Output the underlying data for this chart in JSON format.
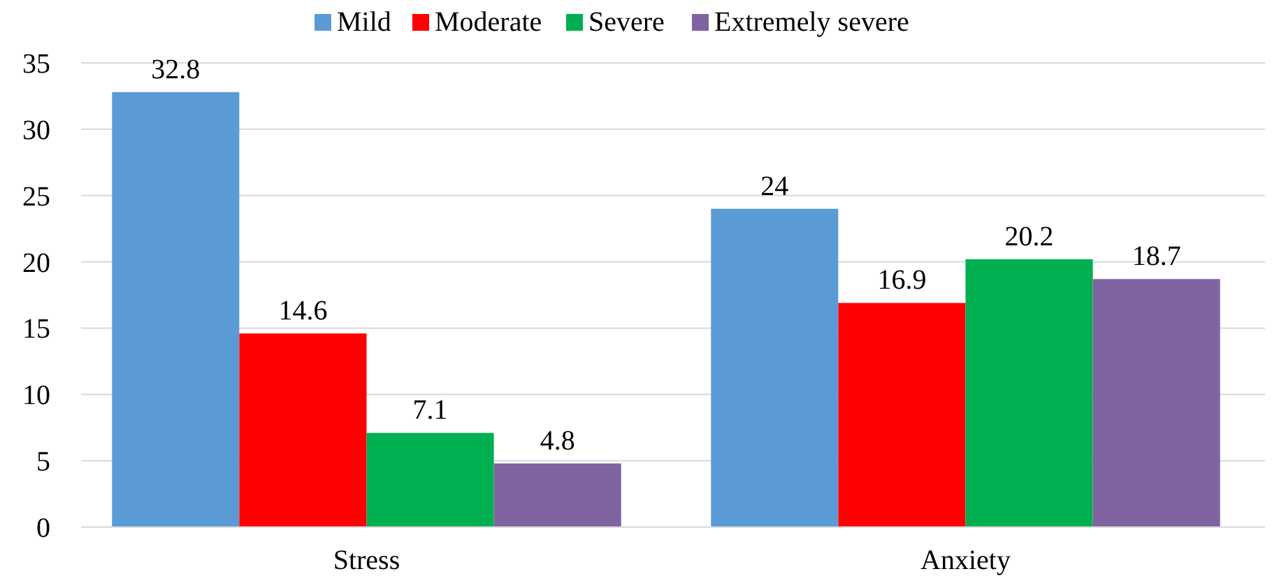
{
  "chart_data": {
    "type": "bar",
    "categories": [
      "Stress",
      "Anxiety"
    ],
    "series": [
      {
        "name": "Mild",
        "color": "#5b9bd5",
        "values": [
          32.8,
          24
        ]
      },
      {
        "name": "Moderate",
        "color": "#ff0000",
        "values": [
          14.6,
          16.9
        ]
      },
      {
        "name": "Severe",
        "color": "#00b050",
        "values": [
          7.1,
          20.2
        ]
      },
      {
        "name": "Extremely severe",
        "color": "#8064a2",
        "values": [
          4.8,
          18.7
        ]
      }
    ],
    "ylim": [
      0,
      35
    ],
    "yticks": [
      0,
      5,
      10,
      15,
      20,
      25,
      30,
      35
    ],
    "grid": "y",
    "legend": "top",
    "data_labels": true
  }
}
